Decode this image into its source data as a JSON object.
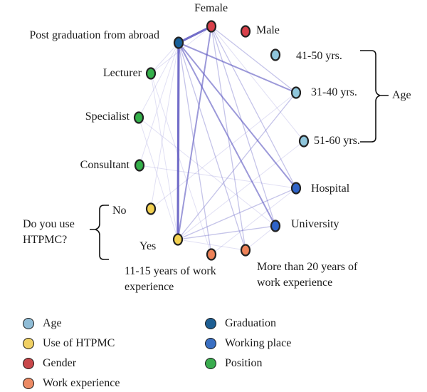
{
  "diagram": {
    "type": "network",
    "nodes": [
      {
        "id": "postgrad",
        "label": "Post graduation from abroad",
        "category": "graduation"
      },
      {
        "id": "female",
        "label": "Female",
        "category": "gender"
      },
      {
        "id": "male",
        "label": "Male",
        "category": "gender"
      },
      {
        "id": "age4150",
        "label": "41-50 yrs.",
        "category": "age"
      },
      {
        "id": "age3140",
        "label": "31-40 yrs.",
        "category": "age"
      },
      {
        "id": "age5160",
        "label": "51-60 yrs.",
        "category": "age"
      },
      {
        "id": "hospital",
        "label": "Hospital",
        "category": "working_place"
      },
      {
        "id": "university",
        "label": "University",
        "category": "working_place"
      },
      {
        "id": "exp20",
        "label": "More than 20 years of work experience",
        "category": "work_experience"
      },
      {
        "id": "exp1115",
        "label": "11-15 years of work experience",
        "category": "work_experience"
      },
      {
        "id": "yes",
        "label": "Yes",
        "category": "htpmc"
      },
      {
        "id": "no",
        "label": "No",
        "category": "htpmc"
      },
      {
        "id": "consultant",
        "label": "Consultant",
        "category": "position"
      },
      {
        "id": "specialist",
        "label": "Specialist",
        "category": "position"
      },
      {
        "id": "lecturer",
        "label": "Lecturer",
        "category": "position"
      }
    ],
    "edges": [
      {
        "from": "postgrad",
        "to": "female",
        "strength": "strong"
      },
      {
        "from": "postgrad",
        "to": "yes",
        "strength": "strong"
      },
      {
        "from": "postgrad",
        "to": "university",
        "strength": "medium"
      },
      {
        "from": "postgrad",
        "to": "age3140",
        "strength": "medium"
      },
      {
        "from": "postgrad",
        "to": "hospital",
        "strength": "medium"
      },
      {
        "from": "female",
        "to": "yes",
        "strength": "medium"
      },
      {
        "from": "female",
        "to": "age3140",
        "strength": "weak"
      },
      {
        "from": "female",
        "to": "university",
        "strength": "weak"
      },
      {
        "from": "female",
        "to": "hospital",
        "strength": "weak"
      },
      {
        "from": "female",
        "to": "exp20",
        "strength": "weak"
      },
      {
        "from": "postgrad",
        "to": "exp20",
        "strength": "weak"
      },
      {
        "from": "postgrad",
        "to": "exp1115",
        "strength": "weak"
      },
      {
        "from": "postgrad",
        "to": "specialist",
        "strength": "faint"
      },
      {
        "from": "postgrad",
        "to": "consultant",
        "strength": "faint"
      },
      {
        "from": "postgrad",
        "to": "lecturer",
        "strength": "faint"
      },
      {
        "from": "postgrad",
        "to": "no",
        "strength": "faint"
      },
      {
        "from": "yes",
        "to": "university",
        "strength": "weak"
      },
      {
        "from": "yes",
        "to": "hospital",
        "strength": "weak"
      },
      {
        "from": "yes",
        "to": "age3140",
        "strength": "weak"
      },
      {
        "from": "yes",
        "to": "exp20",
        "strength": "faint"
      },
      {
        "from": "yes",
        "to": "specialist",
        "strength": "faint"
      },
      {
        "from": "yes",
        "to": "lecturer",
        "strength": "faint"
      },
      {
        "from": "specialist",
        "to": "university",
        "strength": "faint"
      },
      {
        "from": "consultant",
        "to": "hospital",
        "strength": "faint"
      },
      {
        "from": "no",
        "to": "age3140",
        "strength": "faint"
      },
      {
        "from": "exp1115",
        "to": "hospital",
        "strength": "faint"
      },
      {
        "from": "exp20",
        "to": "university",
        "strength": "faint"
      },
      {
        "from": "lecturer",
        "to": "exp1115",
        "strength": "faint"
      },
      {
        "from": "female",
        "to": "lecturer",
        "strength": "faint"
      },
      {
        "from": "age5160",
        "to": "yes",
        "strength": "faint"
      },
      {
        "from": "female",
        "to": "age5160",
        "strength": "faint"
      }
    ],
    "annotations": {
      "age_bracket": "Age",
      "htpmc_question": "Do you use HTPMC?"
    }
  },
  "legend": [
    {
      "key": "age",
      "label": "Age",
      "color": "#8fbcd6"
    },
    {
      "key": "htpmc",
      "label": "Use of HTPMC",
      "color": "#f0d064"
    },
    {
      "key": "gender",
      "label": "Gender",
      "color": "#c8474a"
    },
    {
      "key": "work_experience",
      "label": "Work experience",
      "color": "#ec8a64"
    },
    {
      "key": "graduation",
      "label": "Graduation",
      "color": "#1e5f93"
    },
    {
      "key": "working_place",
      "label": "Working place",
      "color": "#3a6fc2"
    },
    {
      "key": "position",
      "label": "Position",
      "color": "#3aac4e"
    }
  ],
  "node_colors": {
    "age": "#8fc6dc",
    "htpmc": "#f2d050",
    "gender": "#d8404a",
    "work_experience": "#ee8258",
    "graduation": "#17609a",
    "working_place": "#2f63c8",
    "position": "#34b04a"
  },
  "edge_color": "#5a55c0"
}
